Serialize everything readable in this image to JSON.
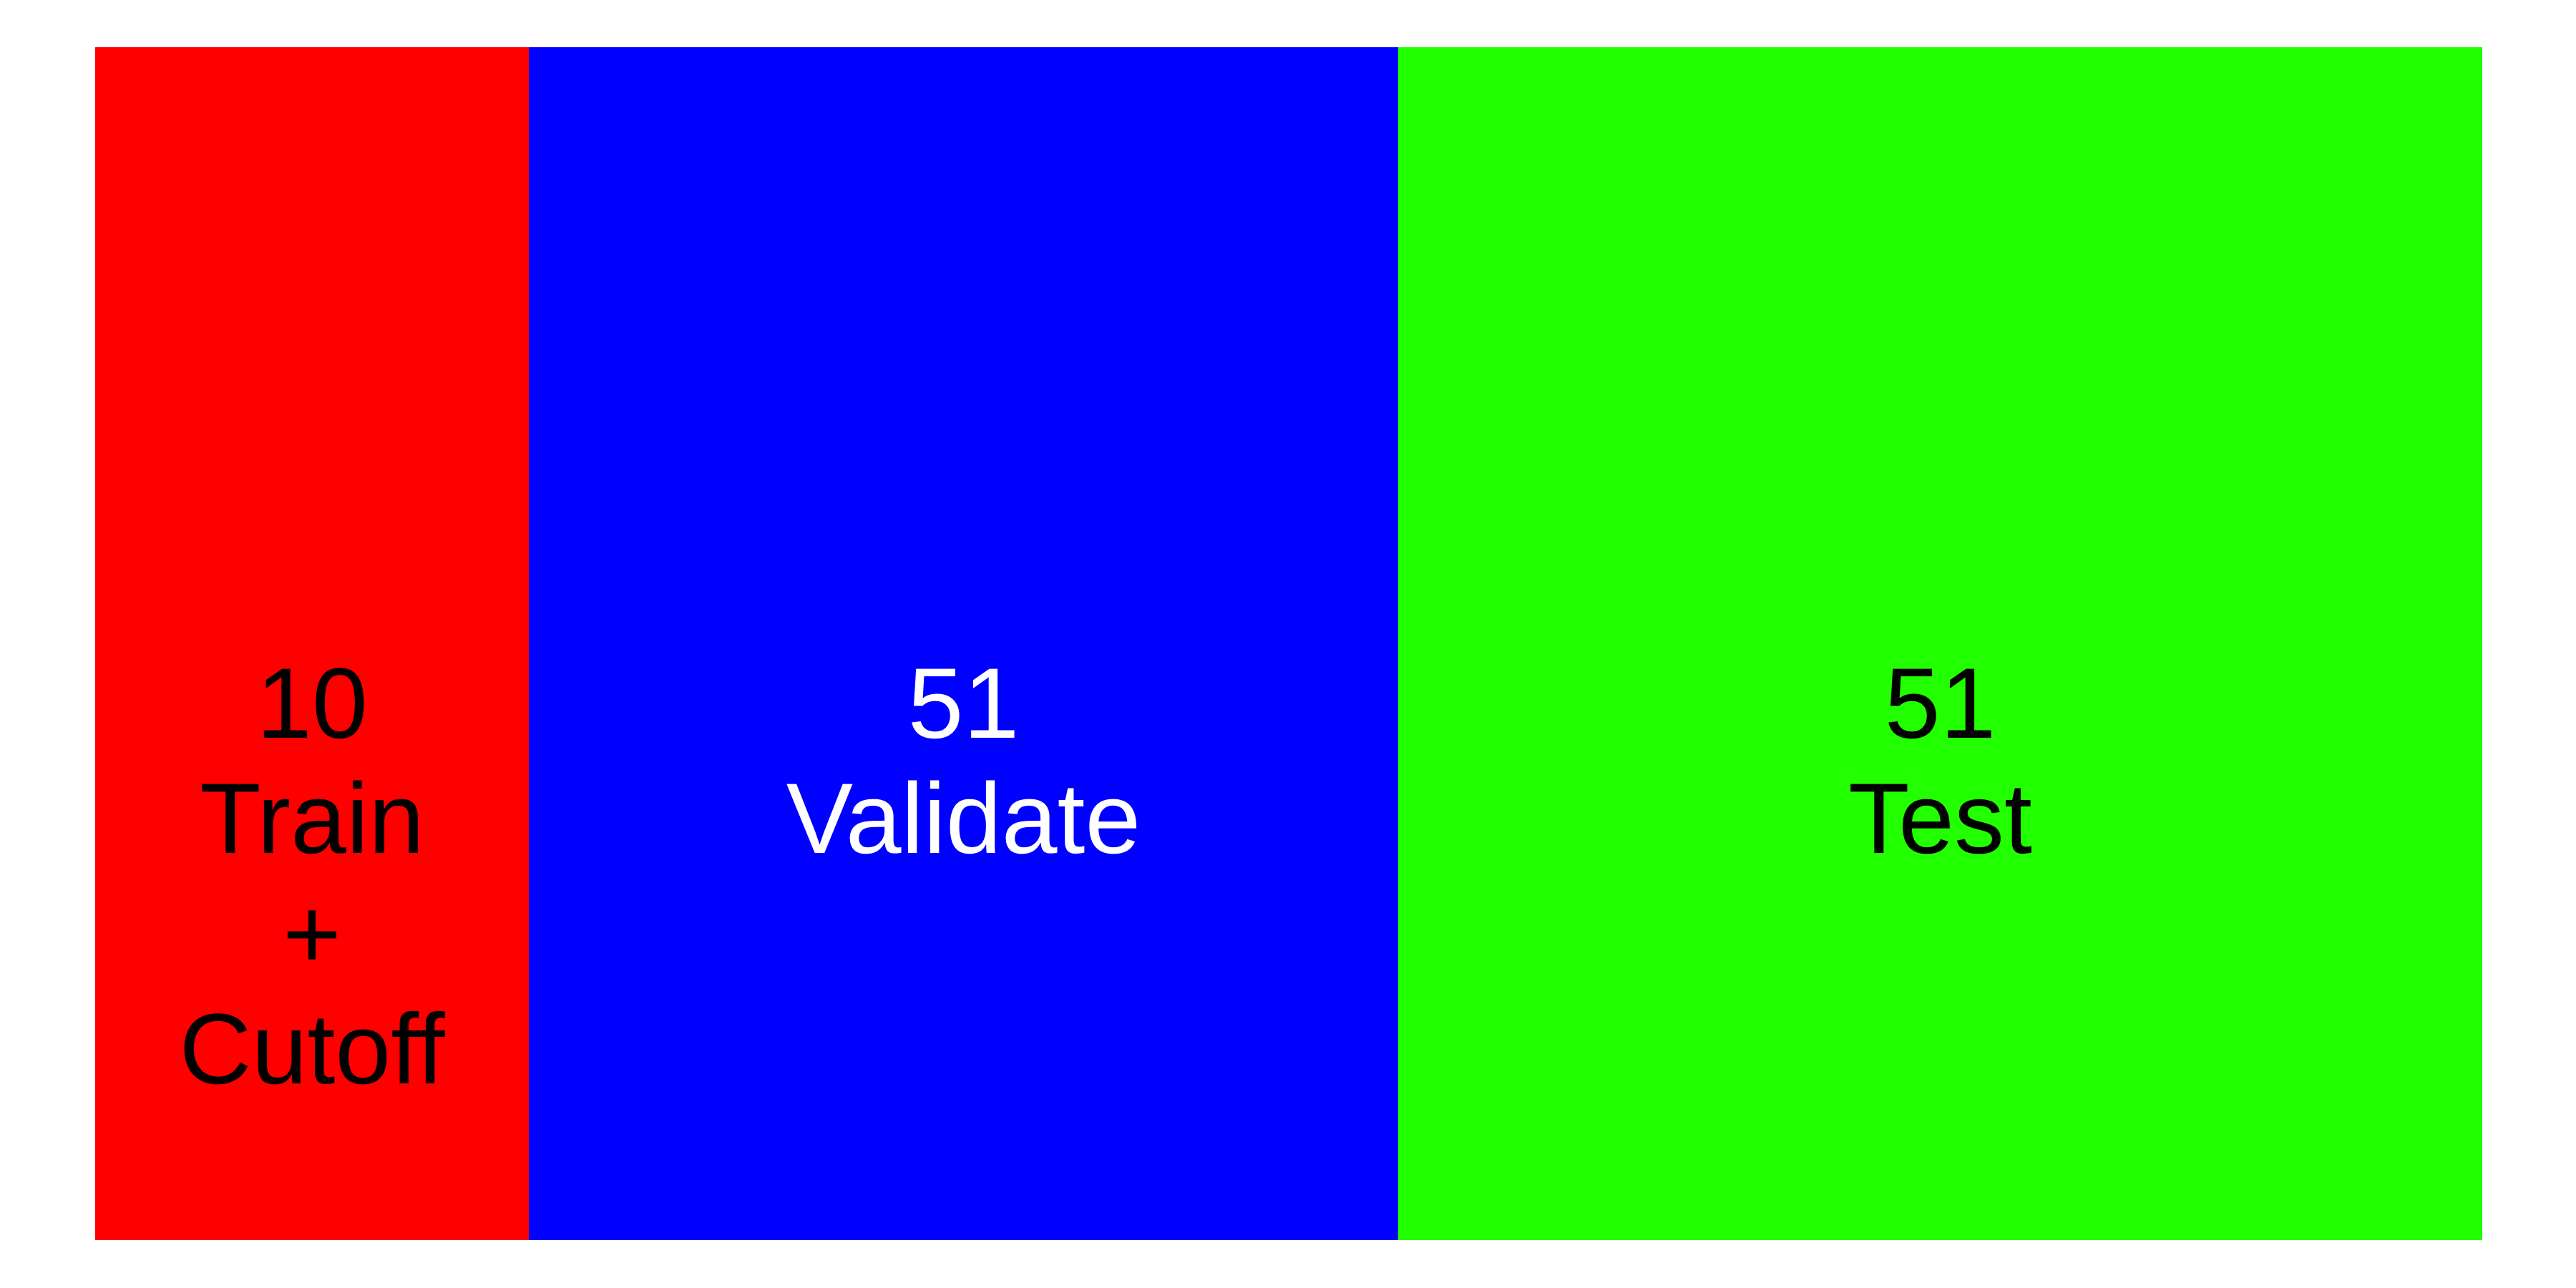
{
  "segments": [
    {
      "count": "10",
      "lines": [
        "Train",
        "+",
        "Cutoff"
      ],
      "color": "#ff0000",
      "text_color": "#000000"
    },
    {
      "count": "51",
      "lines": [
        "Validate"
      ],
      "color": "#0000ff",
      "text_color": "#ffffff"
    },
    {
      "count": "51",
      "lines": [
        "Test"
      ],
      "color": "#22ff00",
      "text_color": "#000000"
    }
  ]
}
